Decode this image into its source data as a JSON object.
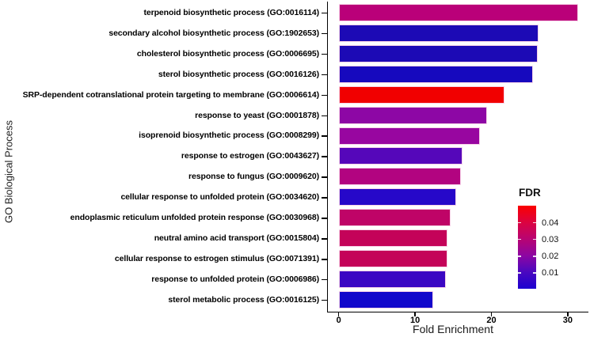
{
  "chart_data": {
    "type": "bar",
    "orientation": "horizontal",
    "title": "",
    "xlabel": "Fold Enrichment",
    "ylabel": "GO Biological Process",
    "xlim": [
      0,
      32.6
    ],
    "x_ticks": [
      0,
      10,
      20,
      30
    ],
    "grid": false,
    "color_encodes": "FDR",
    "bars": [
      {
        "label": "terpenoid biosynthetic process (GO:0016114)",
        "value": 31.2,
        "color": "#BA0079"
      },
      {
        "label": "secondary alcohol biosynthetic process (GO:1902653)",
        "value": 26.0,
        "color": "#1C0AB5"
      },
      {
        "label": "cholesterol biosynthetic process (GO:0006695)",
        "value": 25.9,
        "color": "#1C0AB5"
      },
      {
        "label": "sterol biosynthetic process (GO:0016126)",
        "value": 25.2,
        "color": "#1609BE"
      },
      {
        "label": "SRP-dependent cotranslational protein targeting to membrane (GO:0006614)",
        "value": 21.5,
        "color": "#F10000"
      },
      {
        "label": "response to yeast (GO:0001878)",
        "value": 19.2,
        "color": "#8D07A5"
      },
      {
        "label": "isoprenoid biosynthetic process (GO:0008299)",
        "value": 18.3,
        "color": "#9806A0"
      },
      {
        "label": "response to estrogen (GO:0043627)",
        "value": 16.0,
        "color": "#5507BA"
      },
      {
        "label": "response to fungus (GO:0009620)",
        "value": 15.8,
        "color": "#B20480"
      },
      {
        "label": "cellular response to unfolded protein (GO:0034620)",
        "value": 15.2,
        "color": "#2608C9"
      },
      {
        "label": "endoplasmic reticulum unfolded protein response (GO:0030968)",
        "value": 14.4,
        "color": "#BF0467"
      },
      {
        "label": "neutral amino acid transport (GO:0015804)",
        "value": 14.0,
        "color": "#C40359"
      },
      {
        "label": "cellular response to estrogen stimulus (GO:0071391)",
        "value": 14.0,
        "color": "#C40359"
      },
      {
        "label": "response to unfolded protein (GO:0006986)",
        "value": 13.8,
        "color": "#3B07C3"
      },
      {
        "label": "sterol metabolic process (GO:0016125)",
        "value": 12.2,
        "color": "#1207CB"
      }
    ],
    "legend": {
      "title": "FDR",
      "position": "right",
      "tick_labels": [
        "0.04",
        "0.03",
        "0.02",
        "0.01"
      ],
      "tick_positions_pct": [
        20.7,
        40.7,
        61.0,
        81.0
      ],
      "gradient_stops_top_to_bottom": [
        "#FB0000",
        "#DC0340",
        "#B80472",
        "#8D06A2",
        "#4A08C0",
        "#1C00D0"
      ]
    }
  }
}
